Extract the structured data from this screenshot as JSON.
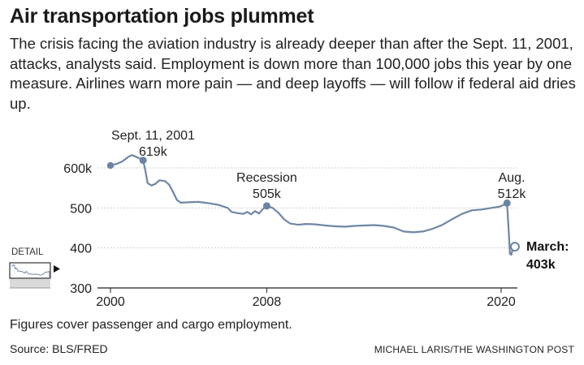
{
  "title": "Air transportation jobs plummet",
  "subtitle": "The crisis facing the aviation industry is already deeper than after the Sept. 11, 2001, attacks, analysts said. Employment is down more than 100,000 jobs this year by one measure. Airlines warn more pain — and deep layoffs — will follow if federal aid dries up.",
  "footnote": "Figures cover passenger and cargo employment.",
  "source": "Source: BLS/FRED",
  "credit": "MICHAEL LARIS/THE WASHINGTON POST",
  "detail_label": "DETAIL",
  "colors": {
    "line": "#6f86a4",
    "marker": "#6b83a2",
    "grid": "#cfcfcf",
    "axis": "#222222"
  },
  "chart_data": {
    "type": "line",
    "title": "",
    "xlabel": "",
    "ylabel": "",
    "ylim": [
      300,
      640
    ],
    "xlim": [
      1999.8,
      2020.75
    ],
    "y_ticks": [
      300,
      400,
      500,
      600
    ],
    "y_tick_labels": [
      "300",
      "400",
      "500",
      "600k"
    ],
    "x_ticks": [
      2000,
      2008,
      2020
    ],
    "x_tick_labels": [
      "2000",
      "2008",
      "2020"
    ],
    "grid": true,
    "series": [
      {
        "name": "",
        "points": [
          [
            2000.0,
            606
          ],
          [
            2000.3,
            610
          ],
          [
            2000.6,
            616
          ],
          [
            2000.9,
            627
          ],
          [
            2001.1,
            632
          ],
          [
            2001.4,
            626
          ],
          [
            2001.67,
            619
          ],
          [
            2001.8,
            590
          ],
          [
            2001.9,
            562
          ],
          [
            2002.1,
            556
          ],
          [
            2002.3,
            560
          ],
          [
            2002.5,
            569
          ],
          [
            2002.8,
            567
          ],
          [
            2003.0,
            558
          ],
          [
            2003.2,
            540
          ],
          [
            2003.4,
            520
          ],
          [
            2003.6,
            513
          ],
          [
            2004.0,
            514
          ],
          [
            2004.5,
            515
          ],
          [
            2005.0,
            512
          ],
          [
            2005.5,
            508
          ],
          [
            2006.0,
            500
          ],
          [
            2006.2,
            490
          ],
          [
            2006.5,
            487
          ],
          [
            2006.8,
            485
          ],
          [
            2007.0,
            490
          ],
          [
            2007.2,
            484
          ],
          [
            2007.4,
            492
          ],
          [
            2007.6,
            486
          ],
          [
            2007.8,
            497
          ],
          [
            2008.0,
            505
          ],
          [
            2008.3,
            500
          ],
          [
            2008.6,
            488
          ],
          [
            2008.9,
            471
          ],
          [
            2009.2,
            461
          ],
          [
            2009.6,
            458
          ],
          [
            2010.0,
            460
          ],
          [
            2010.5,
            459
          ],
          [
            2011.0,
            456
          ],
          [
            2011.5,
            454
          ],
          [
            2012.0,
            453
          ],
          [
            2012.5,
            455
          ],
          [
            2013.0,
            456
          ],
          [
            2013.5,
            457
          ],
          [
            2014.0,
            455
          ],
          [
            2014.5,
            451
          ],
          [
            2015.0,
            441
          ],
          [
            2015.5,
            439
          ],
          [
            2016.0,
            441
          ],
          [
            2016.5,
            448
          ],
          [
            2017.0,
            458
          ],
          [
            2017.5,
            472
          ],
          [
            2018.0,
            485
          ],
          [
            2018.5,
            494
          ],
          [
            2019.0,
            496
          ],
          [
            2019.5,
            500
          ],
          [
            2019.9,
            503
          ],
          [
            2020.1,
            507
          ],
          [
            2020.3,
            512
          ],
          [
            2020.38,
            450
          ],
          [
            2020.45,
            385
          ],
          [
            2020.52,
            383
          ],
          [
            2020.58,
            395
          ],
          [
            2020.62,
            403
          ]
        ]
      }
    ],
    "annotations": [
      {
        "label": "Sept. 11, 2001",
        "value_label": "619k",
        "x": 2001.67,
        "y": 619
      },
      {
        "label": "Recession",
        "value_label": "505k",
        "x": 2008.0,
        "y": 505
      },
      {
        "label": "Aug.",
        "value_label": "512k",
        "x": 2020.3,
        "y": 512
      },
      {
        "label": "March:",
        "value_label": "403k",
        "x": 2020.62,
        "y": 403,
        "emphasis": true
      }
    ]
  }
}
